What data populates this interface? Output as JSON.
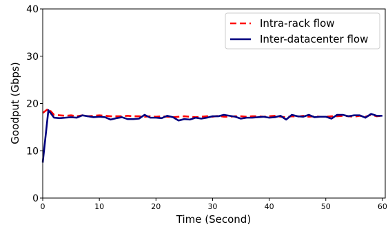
{
  "chart_data": {
    "type": "line",
    "title": "",
    "xlabel": "Time (Second)",
    "ylabel": "Goodput (Gbps)",
    "xlim": [
      0,
      60.5
    ],
    "ylim": [
      0,
      40
    ],
    "xticks": [
      0,
      10,
      20,
      30,
      40,
      50,
      60
    ],
    "yticks": [
      0,
      10,
      20,
      30,
      40
    ],
    "grid": false,
    "legend_position": "top-right",
    "x": [
      0,
      1,
      2,
      3,
      4,
      5,
      6,
      7,
      8,
      9,
      10,
      11,
      12,
      13,
      14,
      15,
      16,
      17,
      18,
      19,
      20,
      21,
      22,
      23,
      24,
      25,
      26,
      27,
      28,
      29,
      30,
      31,
      32,
      33,
      34,
      35,
      36,
      37,
      38,
      39,
      40,
      41,
      42,
      43,
      44,
      45,
      46,
      47,
      48,
      49,
      50,
      51,
      52,
      53,
      54,
      55,
      56,
      57,
      58,
      59,
      60
    ],
    "series": [
      {
        "name": "Intra-rack flow",
        "color": "#ff0000",
        "line_style": "dashed",
        "values": [
          18.0,
          18.9,
          17.6,
          17.5,
          17.4,
          17.5,
          17.3,
          17.5,
          17.3,
          17.4,
          17.5,
          17.4,
          17.3,
          17.3,
          17.3,
          17.4,
          17.3,
          17.3,
          17.2,
          17.3,
          17.2,
          17.3,
          17.2,
          17.1,
          17.2,
          17.3,
          17.2,
          17.1,
          17.2,
          17.3,
          17.2,
          17.4,
          17.2,
          17.2,
          17.3,
          17.3,
          17.2,
          17.3,
          17.3,
          17.2,
          17.3,
          17.4,
          17.2,
          17.1,
          17.3,
          17.2,
          17.4,
          17.2,
          17.3,
          17.2,
          17.2,
          17.3,
          17.3,
          17.4,
          17.3,
          17.2,
          17.4,
          17.2,
          17.6,
          17.3,
          17.4
        ]
      },
      {
        "name": "Inter-datacenter flow",
        "color": "#00007f",
        "line_style": "solid",
        "values": [
          7.5,
          18.6,
          17.0,
          16.9,
          17.0,
          17.1,
          17.0,
          17.5,
          17.3,
          17.1,
          17.2,
          17.1,
          16.6,
          16.9,
          17.1,
          16.7,
          16.7,
          16.8,
          17.6,
          17.0,
          17.0,
          16.9,
          17.4,
          17.1,
          16.4,
          16.7,
          16.6,
          17.0,
          16.8,
          17.0,
          17.3,
          17.3,
          17.6,
          17.4,
          17.2,
          16.8,
          17.0,
          17.0,
          17.1,
          17.2,
          17.0,
          17.1,
          17.4,
          16.6,
          17.6,
          17.3,
          17.2,
          17.6,
          17.1,
          17.2,
          17.2,
          16.8,
          17.6,
          17.6,
          17.3,
          17.5,
          17.5,
          17.0,
          17.8,
          17.4,
          17.4
        ]
      }
    ]
  }
}
